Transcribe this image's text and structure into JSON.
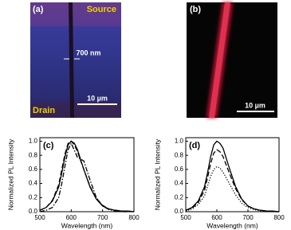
{
  "panels": {
    "a": {
      "label": "(a)",
      "top_text": "Source",
      "bottom_text": "Drain",
      "width_text": "700 nm",
      "scale_text": "10 µm"
    },
    "b": {
      "label": "(b)",
      "scale_text": "10 µm"
    }
  },
  "chart_data": [
    {
      "type": "line",
      "panel_label": "(c)",
      "x_label": "Wavelength (nm)",
      "y_label": "Normalized PL Intensity",
      "x": [
        500,
        520,
        540,
        560,
        570,
        580,
        590,
        600,
        610,
        620,
        640,
        660,
        680,
        700,
        720,
        740,
        760,
        780,
        800
      ],
      "series": [
        {
          "color": "#000000",
          "style": "solid",
          "values": [
            0.02,
            0.06,
            0.15,
            0.35,
            0.55,
            0.78,
            0.95,
            1.0,
            0.97,
            0.88,
            0.6,
            0.35,
            0.18,
            0.08,
            0.04,
            0.02,
            0.01,
            0.01,
            0.0
          ]
        },
        {
          "color": "#000000",
          "style": "dashed",
          "values": [
            0.02,
            0.06,
            0.16,
            0.38,
            0.6,
            0.82,
            0.97,
            1.0,
            0.95,
            0.85,
            0.6,
            0.36,
            0.19,
            0.09,
            0.04,
            0.02,
            0.01,
            0.01,
            0.0
          ]
        },
        {
          "color": "#000000",
          "style": "dashdot",
          "values": [
            0.0,
            0.02,
            0.06,
            0.2,
            0.4,
            0.65,
            0.88,
            0.97,
            0.87,
            0.77,
            0.72,
            0.45,
            0.2,
            0.08,
            0.03,
            0.01,
            0.0,
            0.0,
            0.0
          ]
        }
      ],
      "xlim": [
        500,
        800
      ],
      "xticks": [
        500,
        600,
        700,
        800
      ],
      "ylim": [
        0,
        1.05
      ],
      "yticks": [
        {
          "value": 0,
          "label": "0.0"
        },
        0.2,
        0.4,
        0.6,
        0.8,
        {
          "value": 1,
          "label": "1.0"
        }
      ]
    },
    {
      "type": "line",
      "panel_label": "(d)",
      "x_label": "Wavelength (nm)",
      "y_label": "Normalized PL Intensity",
      "x": [
        500,
        520,
        540,
        560,
        570,
        580,
        590,
        600,
        610,
        620,
        640,
        660,
        680,
        700,
        720,
        740,
        760,
        780,
        800
      ],
      "series": [
        {
          "color": "#000000",
          "style": "solid",
          "values": [
            0.02,
            0.06,
            0.15,
            0.35,
            0.55,
            0.78,
            0.95,
            1.0,
            0.97,
            0.9,
            0.62,
            0.36,
            0.18,
            0.08,
            0.04,
            0.02,
            0.01,
            0.01,
            0.0
          ]
        },
        {
          "color": "#000000",
          "style": "dashed",
          "values": [
            0.02,
            0.05,
            0.13,
            0.3,
            0.48,
            0.68,
            0.83,
            0.88,
            0.85,
            0.78,
            0.55,
            0.33,
            0.17,
            0.08,
            0.04,
            0.02,
            0.01,
            0.0,
            0.0
          ]
        },
        {
          "color": "#000000",
          "style": "dotted",
          "values": [
            0.01,
            0.04,
            0.1,
            0.22,
            0.36,
            0.5,
            0.6,
            0.64,
            0.62,
            0.56,
            0.4,
            0.24,
            0.12,
            0.06,
            0.03,
            0.01,
            0.0,
            0.0,
            0.0
          ]
        }
      ],
      "xlim": [
        500,
        800
      ],
      "xticks": [
        500,
        600,
        700,
        800
      ],
      "ylim": [
        0,
        1.05
      ],
      "yticks": [
        {
          "value": 0,
          "label": "0.0"
        },
        0.2,
        0.4,
        0.6,
        0.8,
        {
          "value": 1,
          "label": "1.0"
        }
      ]
    }
  ]
}
